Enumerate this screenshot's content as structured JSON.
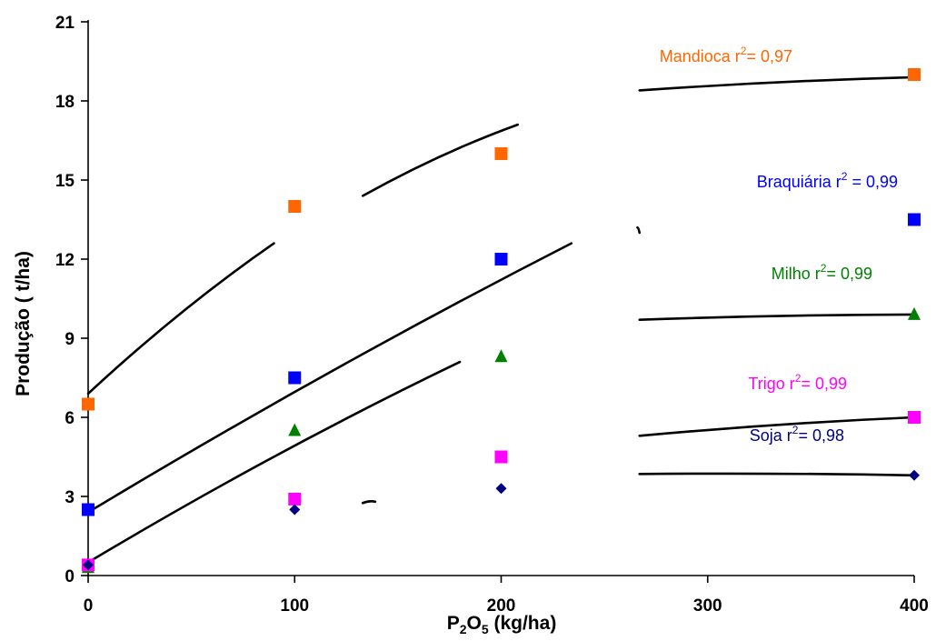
{
  "chart_data": {
    "type": "scatter",
    "xlabel": "P2O5 (kg/ha)",
    "xlabel_parts": {
      "base": "P",
      "sub1": "2",
      "mid": "O",
      "sub2": "5",
      "rest": " (kg/ha)"
    },
    "ylabel": "Produção ( t/ha)",
    "xlim": [
      0,
      400
    ],
    "ylim": [
      0,
      21
    ],
    "x_ticks": [
      0,
      100,
      200,
      300,
      400
    ],
    "x_tick_labels": [
      "0",
      "100",
      "200",
      "300",
      "400"
    ],
    "y_ticks": [
      0,
      3,
      6,
      9,
      12,
      15,
      18,
      21
    ],
    "y_tick_labels": [
      "0",
      "3",
      "6",
      "9",
      "12",
      "15",
      "18",
      "21"
    ],
    "grid": false,
    "series": [
      {
        "name": "Mandioca",
        "color": "#ff6600",
        "marker": "square",
        "x": [
          0,
          100,
          200,
          400
        ],
        "y": [
          6.5,
          14.0,
          16.0,
          19.0
        ],
        "annotation": {
          "label": "Mandioca r",
          "sup": "2",
          "value": "= 0,97"
        },
        "trend_segments": [
          [
            [
              0,
              6.9
            ],
            [
              90,
              12.6
            ]
          ],
          [
            [
              133,
              14.4
            ],
            [
              208,
              17.1
            ]
          ],
          [
            [
              267,
              18.4
            ],
            [
              400,
              18.9
            ]
          ]
        ]
      },
      {
        "name": "Braquiária",
        "color": "#0000ff",
        "marker": "square",
        "x": [
          0,
          100,
          200,
          400
        ],
        "y": [
          2.5,
          7.5,
          12.0,
          13.5
        ],
        "annotation": {
          "label": "Braquiária  r",
          "sup": "2",
          "value": " = 0,99"
        },
        "trend_segments": [
          [
            [
              0,
              2.4
            ],
            [
              234,
              12.6
            ]
          ],
          [
            [
              266,
              13.2
            ],
            [
              267,
              13.0
            ]
          ]
        ]
      },
      {
        "name": "Milho",
        "color": "#008000",
        "marker": "triangle",
        "x": [
          0,
          100,
          200,
          400
        ],
        "y": [
          0.3,
          5.5,
          8.3,
          9.9
        ],
        "annotation": {
          "label": "Milho  r",
          "sup": "2",
          "value": "= 0,99"
        },
        "trend_segments": [
          [
            [
              0,
              0.5
            ],
            [
              180,
              8.1
            ]
          ],
          [
            [
              267,
              9.7
            ],
            [
              400,
              9.9
            ]
          ]
        ]
      },
      {
        "name": "Trigo",
        "color": "#ff00ff",
        "marker": "square",
        "x": [
          0,
          100,
          200,
          400
        ],
        "y": [
          0.4,
          2.9,
          4.5,
          6.0
        ],
        "annotation": {
          "label": "Trigo  r",
          "sup": "2",
          "value": "= 0,99"
        },
        "trend_segments": [
          [
            [
              267,
              5.3
            ],
            [
              400,
              6.0
            ]
          ]
        ]
      },
      {
        "name": "Soja",
        "color": "#000080",
        "marker": "diamond",
        "x": [
          0,
          100,
          200,
          400
        ],
        "y": [
          0.4,
          2.5,
          3.3,
          3.8
        ],
        "annotation": {
          "label": "Soja  r",
          "sup": "2",
          "value": "= 0,98"
        },
        "trend_segments": [
          [
            [
              133,
              2.75
            ],
            [
              139,
              2.8
            ]
          ],
          [
            [
              267,
              3.85
            ],
            [
              400,
              3.8
            ]
          ]
        ]
      }
    ]
  }
}
